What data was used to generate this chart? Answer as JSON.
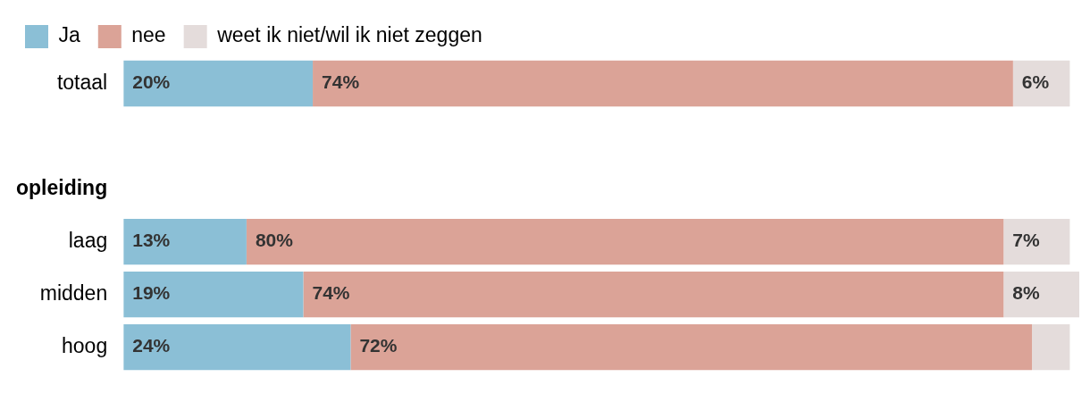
{
  "chart_data": {
    "type": "bar",
    "orientation": "horizontal",
    "stacked": true,
    "categories": [
      "totaal",
      null,
      "opleiding",
      "laag",
      "midden",
      "hoog"
    ],
    "series": [
      {
        "name": "Ja",
        "color": "#8bbfd6",
        "values": [
          20,
          null,
          null,
          13,
          19,
          24
        ],
        "value_labels": [
          "20%",
          null,
          null,
          "13%",
          "19%",
          "24%"
        ]
      },
      {
        "name": "nee",
        "color": "#dba397",
        "values": [
          74,
          null,
          null,
          80,
          74,
          72
        ],
        "value_labels": [
          "74%",
          null,
          null,
          "80%",
          "74%",
          "72%"
        ]
      },
      {
        "name": "weet ik niet/wil ik niet zeggen",
        "color": "#e4dcdb",
        "values": [
          6,
          null,
          null,
          7,
          8,
          4
        ],
        "value_labels": [
          "6%",
          null,
          null,
          "7%",
          "8%",
          null
        ]
      }
    ],
    "xlim": [
      0,
      101
    ],
    "tick_labels": "y",
    "legend": "top left"
  }
}
